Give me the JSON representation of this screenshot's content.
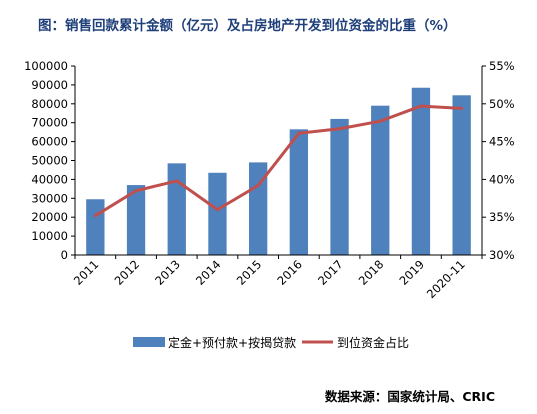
{
  "chart_data": {
    "type": "bar",
    "title": "图：销售回款累计金额（亿元）及占房地产开发到位资金的比重（%）",
    "categories": [
      "2011",
      "2012",
      "2013",
      "2014",
      "2015",
      "2016",
      "2017",
      "2018",
      "2019",
      "2020-11"
    ],
    "series": [
      {
        "name": "定金+预付款+按揭贷款",
        "type": "bar",
        "axis": "left",
        "color": "#4f81bd",
        "values": [
          29500,
          37000,
          48500,
          43500,
          49000,
          66500,
          72000,
          79000,
          88500,
          84500
        ]
      },
      {
        "name": "到位资金占比",
        "type": "line",
        "axis": "right",
        "color": "#c0504d",
        "values": [
          35.2,
          38.5,
          39.8,
          36.0,
          39.2,
          46.1,
          46.7,
          47.7,
          49.7,
          49.4
        ]
      }
    ],
    "y_left": {
      "ylim": [
        0,
        100000
      ],
      "ticks": [
        "0",
        "10000",
        "20000",
        "30000",
        "40000",
        "50000",
        "60000",
        "70000",
        "80000",
        "90000",
        "100000"
      ]
    },
    "y_right": {
      "ylim": [
        30,
        55
      ],
      "ticks": [
        "30%",
        "35%",
        "40%",
        "45%",
        "50%",
        "55%"
      ]
    },
    "grid": false,
    "legend": "bottom",
    "source": "数据来源：国家统计局、CRIC"
  }
}
